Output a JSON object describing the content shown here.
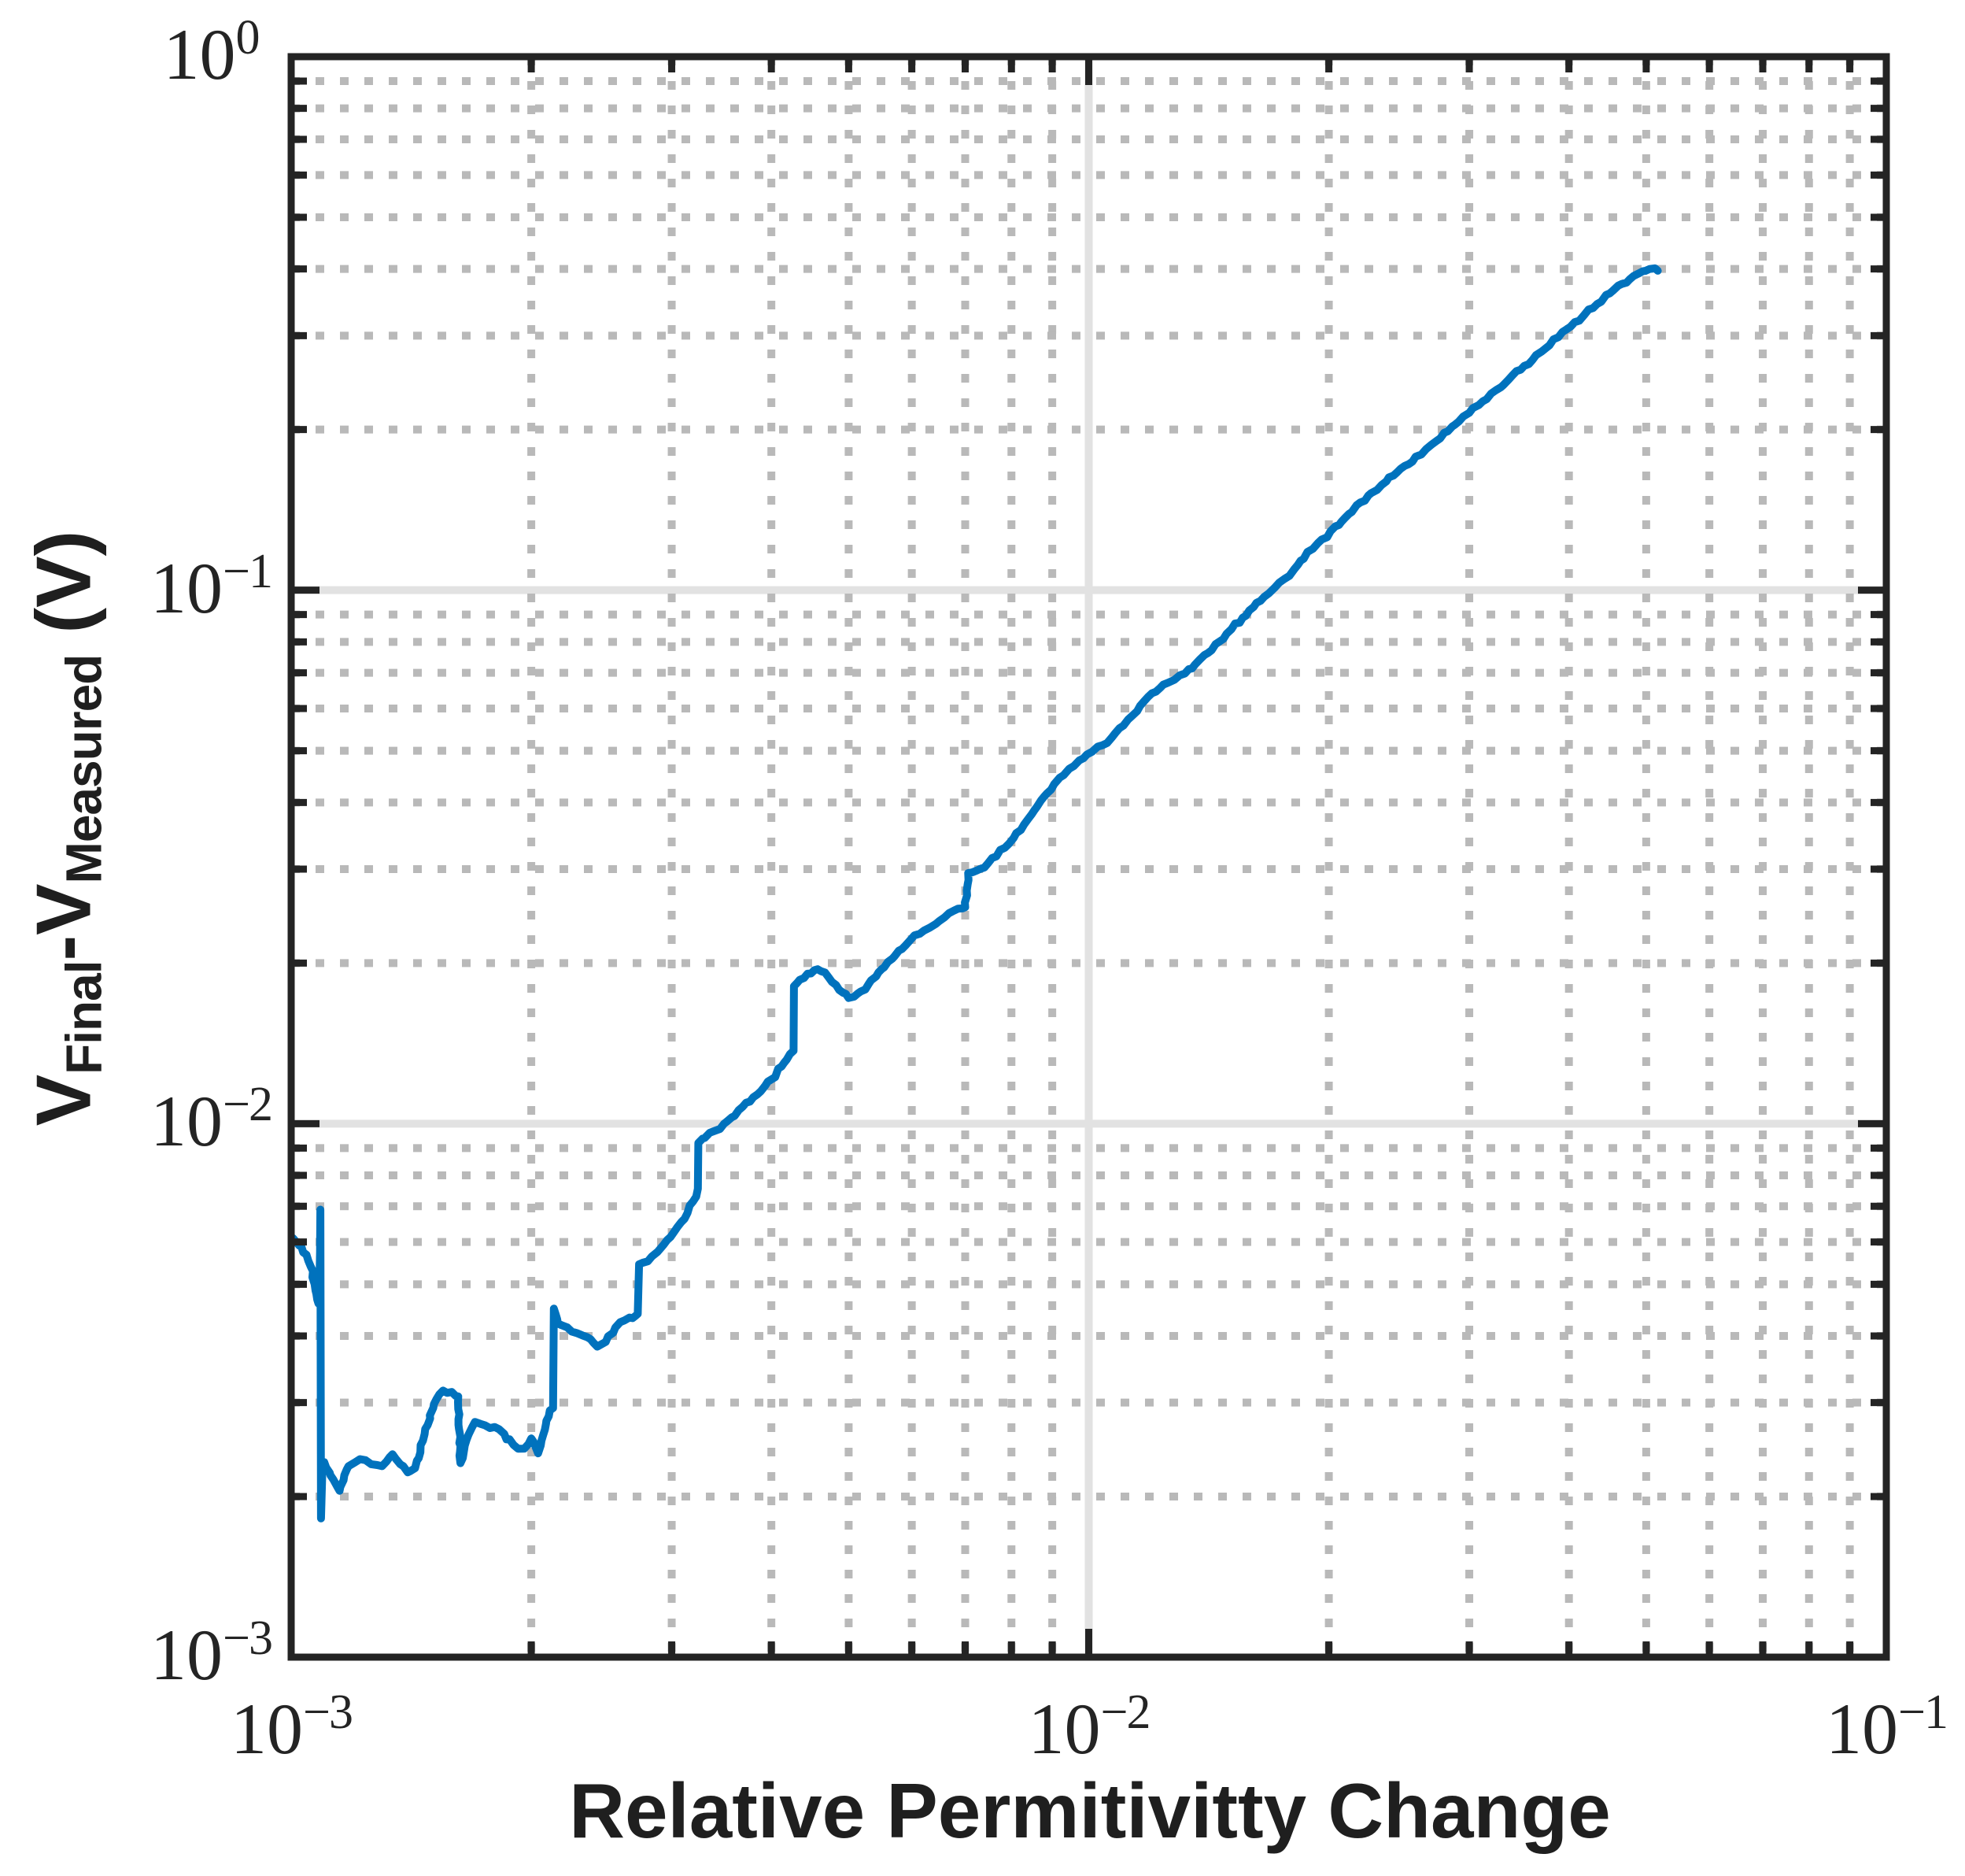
{
  "page": {
    "background": "#ffffff"
  },
  "labels": {
    "xlabel": "Relative Permitivitty Change",
    "ylabel_parts": [
      {
        "text": "V",
        "sub": false
      },
      {
        "text": "Final",
        "sub": true
      },
      {
        "text": "-V",
        "sub": false
      },
      {
        "text": "Measured",
        "sub": true
      },
      {
        "text": " (V)",
        "sub": false
      }
    ],
    "x_tick_labels": [
      {
        "base": "10",
        "exp": "−3"
      },
      {
        "base": "10",
        "exp": "−2"
      },
      {
        "base": "10",
        "exp": "−1"
      }
    ],
    "y_tick_labels": [
      {
        "base": "10",
        "exp": "0"
      },
      {
        "base": "10",
        "exp": "−1"
      },
      {
        "base": "10",
        "exp": "−2"
      },
      {
        "base": "10",
        "exp": "−3"
      }
    ]
  },
  "chart_data": {
    "type": "line",
    "title": "",
    "xlabel": "Relative Permitivitty Change",
    "ylabel": "V_Final - V_Measured (V)",
    "xscale": "log",
    "yscale": "log",
    "xlim": [
      0.001,
      0.1
    ],
    "ylim": [
      0.001,
      1
    ],
    "legend_position": "none",
    "grid": {
      "major": "solid",
      "minor": "dotted",
      "major_on": true,
      "minor_on": true
    },
    "colors": {
      "line": "#0072BD",
      "axis": "#242424",
      "major_grid": "#e2e2e2",
      "minor_grid": "#b9b9b9",
      "text": "#242424"
    },
    "x_major_ticks": [
      0.001,
      0.01,
      0.1
    ],
    "y_major_ticks": [
      0.001,
      0.01,
      0.1,
      1
    ],
    "series": [
      {
        "name": "VFinal-VMeasured error",
        "points": [
          [
            0.001,
            0.0061
          ],
          [
            0.001015,
            0.006
          ],
          [
            0.00103,
            0.00588
          ],
          [
            0.001045,
            0.00568
          ],
          [
            0.001058,
            0.0054
          ],
          [
            0.00107,
            0.005
          ],
          [
            0.001078,
            0.00468
          ],
          [
            0.001082,
            0.0046
          ],
          [
            0.001085,
            0.00505
          ],
          [
            0.001087,
            0.00575
          ],
          [
            0.001088,
            0.0069
          ],
          [
            0.00109,
            0.00182
          ],
          [
            0.001094,
            0.0022
          ],
          [
            0.0011,
            0.00232
          ],
          [
            0.00113,
            0.00215
          ],
          [
            0.00115,
            0.00205
          ],
          [
            0.00118,
            0.00228
          ],
          [
            0.00122,
            0.00235
          ],
          [
            0.00126,
            0.0023
          ],
          [
            0.0013,
            0.00228
          ],
          [
            0.00134,
            0.0024
          ],
          [
            0.00137,
            0.0023
          ],
          [
            0.0014,
            0.00222
          ],
          [
            0.00143,
            0.00226
          ],
          [
            0.00147,
            0.00262
          ],
          [
            0.00151,
            0.00298
          ],
          [
            0.00155,
            0.00316
          ],
          [
            0.00159,
            0.00314
          ],
          [
            0.00162,
            0.00308
          ],
          [
            0.00163,
            0.00231
          ],
          [
            0.00166,
            0.00256
          ],
          [
            0.0017,
            0.00276
          ],
          [
            0.00175,
            0.00272
          ],
          [
            0.0018,
            0.0027
          ],
          [
            0.00185,
            0.00262
          ],
          [
            0.0019,
            0.0025
          ],
          [
            0.00196,
            0.00246
          ],
          [
            0.002,
            0.00257
          ],
          [
            0.00204,
            0.00241
          ],
          [
            0.00208,
            0.00267
          ],
          [
            0.00211,
            0.0029
          ],
          [
            0.00213,
            0.00293
          ],
          [
            0.002135,
            0.0045
          ],
          [
            0.00216,
            0.00422
          ],
          [
            0.00222,
            0.00415
          ],
          [
            0.00228,
            0.00405
          ],
          [
            0.00235,
            0.00398
          ],
          [
            0.00242,
            0.00382
          ],
          [
            0.00248,
            0.0039
          ],
          [
            0.00255,
            0.00415
          ],
          [
            0.00262,
            0.00428
          ],
          [
            0.00268,
            0.00432
          ],
          [
            0.00272,
            0.0044
          ],
          [
            0.00273,
            0.00545
          ],
          [
            0.0028,
            0.00552
          ],
          [
            0.00288,
            0.00575
          ],
          [
            0.00296,
            0.00605
          ],
          [
            0.00305,
            0.0064
          ],
          [
            0.00314,
            0.0068
          ],
          [
            0.00322,
            0.0073
          ],
          [
            0.003235,
            0.00755
          ],
          [
            0.00324,
            0.0092
          ],
          [
            0.0033,
            0.0094
          ],
          [
            0.0034,
            0.0097
          ],
          [
            0.00352,
            0.0101
          ],
          [
            0.00364,
            0.0106
          ],
          [
            0.00376,
            0.011
          ],
          [
            0.00388,
            0.0115
          ],
          [
            0.004,
            0.0121
          ],
          [
            0.00412,
            0.0128
          ],
          [
            0.00422,
            0.0135
          ],
          [
            0.004265,
            0.0137
          ],
          [
            0.00427,
            0.0181
          ],
          [
            0.00434,
            0.0186
          ],
          [
            0.00444,
            0.0191
          ],
          [
            0.00453,
            0.0194
          ],
          [
            0.00462,
            0.0193
          ],
          [
            0.00472,
            0.0188
          ],
          [
            0.00482,
            0.0182
          ],
          [
            0.00492,
            0.0176
          ],
          [
            0.005,
            0.0172
          ],
          [
            0.00508,
            0.0173
          ],
          [
            0.00518,
            0.0177
          ],
          [
            0.0053,
            0.0183
          ],
          [
            0.00545,
            0.0192
          ],
          [
            0.0056,
            0.0201
          ],
          [
            0.00578,
            0.0211
          ],
          [
            0.00596,
            0.022
          ],
          [
            0.00614,
            0.0227
          ],
          [
            0.00632,
            0.0233
          ],
          [
            0.0065,
            0.024
          ],
          [
            0.00668,
            0.0248
          ],
          [
            0.00686,
            0.0253
          ],
          [
            0.007,
            0.02545
          ],
          [
            0.00706,
            0.0295
          ],
          [
            0.00715,
            0.0296
          ],
          [
            0.0073,
            0.03
          ],
          [
            0.00748,
            0.0308
          ],
          [
            0.00766,
            0.0317
          ],
          [
            0.00785,
            0.0329
          ],
          [
            0.00805,
            0.0343
          ],
          [
            0.0083,
            0.0364
          ],
          [
            0.00855,
            0.0387
          ],
          [
            0.0088,
            0.0411
          ],
          [
            0.00905,
            0.0433
          ],
          [
            0.0093,
            0.045
          ],
          [
            0.00958,
            0.0468
          ],
          [
            0.00985,
            0.0484
          ],
          [
            0.0101,
            0.0498
          ],
          [
            0.0104,
            0.0512
          ],
          [
            0.0108,
            0.054
          ],
          [
            0.0112,
            0.0572
          ],
          [
            0.0116,
            0.0607
          ],
          [
            0.012,
            0.0641
          ],
          [
            0.0124,
            0.0665
          ],
          [
            0.0128,
            0.0679
          ],
          [
            0.0132,
            0.0698
          ],
          [
            0.0136,
            0.0726
          ],
          [
            0.0141,
            0.0762
          ],
          [
            0.0146,
            0.0802
          ],
          [
            0.0151,
            0.0845
          ],
          [
            0.0156,
            0.0888
          ],
          [
            0.0161,
            0.093
          ],
          [
            0.0166,
            0.0972
          ],
          [
            0.0171,
            0.101
          ],
          [
            0.0176,
            0.105
          ],
          [
            0.0181,
            0.1095
          ],
          [
            0.0186,
            0.1145
          ],
          [
            0.0191,
            0.1195
          ],
          [
            0.0196,
            0.1245
          ],
          [
            0.0201,
            0.129
          ],
          [
            0.0206,
            0.1325
          ],
          [
            0.0212,
            0.139
          ],
          [
            0.0219,
            0.146
          ],
          [
            0.0226,
            0.152
          ],
          [
            0.0233,
            0.1575
          ],
          [
            0.0241,
            0.164
          ],
          [
            0.0249,
            0.171
          ],
          [
            0.0257,
            0.178
          ],
          [
            0.0265,
            0.184
          ],
          [
            0.0273,
            0.1905
          ],
          [
            0.0282,
            0.1985
          ],
          [
            0.0291,
            0.207
          ],
          [
            0.03,
            0.215
          ],
          [
            0.0312,
            0.226
          ],
          [
            0.0324,
            0.237
          ],
          [
            0.0336,
            0.248
          ],
          [
            0.0348,
            0.259
          ],
          [
            0.036,
            0.27
          ],
          [
            0.0374,
            0.284
          ],
          [
            0.0388,
            0.298
          ],
          [
            0.0402,
            0.312
          ],
          [
            0.0418,
            0.328
          ],
          [
            0.0434,
            0.344
          ],
          [
            0.045,
            0.36
          ],
          [
            0.0466,
            0.375
          ],
          [
            0.0482,
            0.388
          ],
          [
            0.0495,
            0.396
          ],
          [
            0.0505,
            0.4
          ],
          [
            0.0513,
            0.401
          ],
          [
            0.0517,
            0.397
          ]
        ]
      }
    ]
  }
}
